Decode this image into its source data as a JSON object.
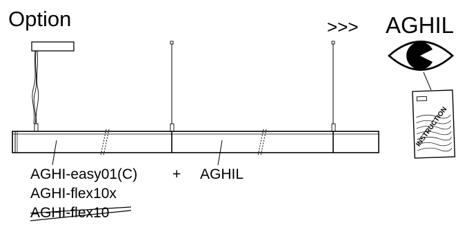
{
  "header": {
    "title": "Option",
    "arrows": ">>>",
    "brand": "AGHIL"
  },
  "instruction": {
    "label": "INSTRUCTION"
  },
  "labels": {
    "product_1": "AGHI-easy01(C)",
    "plus": "+",
    "product_2": "AGHIL",
    "variant_active": "AGHI-flex10x",
    "variant_deprecated": "AGHI-flex10"
  }
}
